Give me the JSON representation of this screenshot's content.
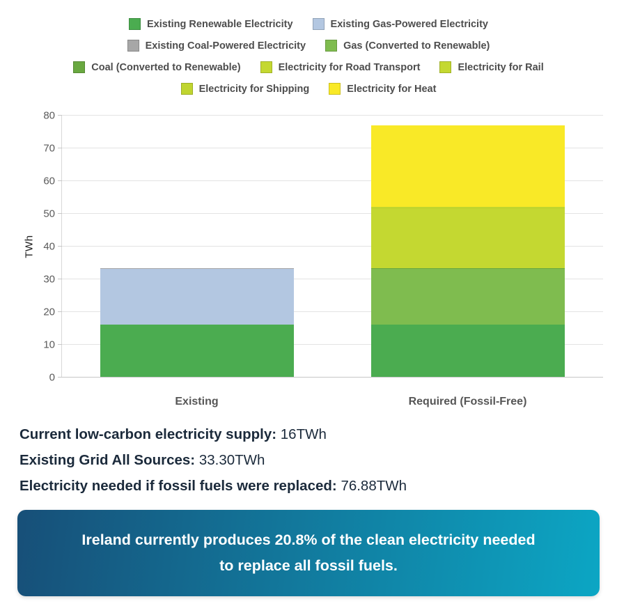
{
  "legend": {
    "rows": [
      [
        {
          "label": "Existing Renewable Electricity",
          "color": "#4BAC50"
        },
        {
          "label": "Existing Gas-Powered Electricity",
          "color": "#B3C7E1"
        }
      ],
      [
        {
          "label": "Existing Coal-Powered Electricity",
          "color": "#A7A7A7"
        },
        {
          "label": "Gas (Converted to Renewable)",
          "color": "#7FBC4F"
        }
      ],
      [
        {
          "label": "Coal (Converted to Renewable)",
          "color": "#69A840"
        },
        {
          "label": "Electricity for Road Transport",
          "color": "#C4D831"
        },
        {
          "label": "Electricity for Rail",
          "color": "#C4D831"
        }
      ],
      [
        {
          "label": "Electricity for Shipping",
          "color": "#C0D52F"
        },
        {
          "label": "Electricity for Heat",
          "color": "#F9E927"
        }
      ]
    ]
  },
  "chart_data": {
    "type": "bar",
    "stacked": true,
    "categories": [
      "Existing",
      "Required (Fossil-Free)"
    ],
    "ylabel": "TWh",
    "ylim": [
      0,
      80
    ],
    "yticks": [
      0,
      10,
      20,
      30,
      40,
      50,
      60,
      70,
      80
    ],
    "grid": true,
    "legend_position": "top",
    "series": [
      {
        "name": "Existing Renewable Electricity",
        "color": "#4BAC50",
        "values": [
          16,
          16
        ]
      },
      {
        "name": "Existing Gas-Powered Electricity",
        "color": "#B3C7E1",
        "values": [
          17.0,
          0
        ]
      },
      {
        "name": "Existing Coal-Powered Electricity",
        "color": "#A7A7A7",
        "values": [
          0.3,
          0
        ]
      },
      {
        "name": "Gas (Converted to Renewable)",
        "color": "#7FBC4F",
        "values": [
          0,
          17.0
        ]
      },
      {
        "name": "Coal (Converted to Renewable)",
        "color": "#69A840",
        "values": [
          0,
          0.3
        ]
      },
      {
        "name": "Electricity for Road Transport",
        "color": "#C4D831",
        "values": [
          0,
          17.55
        ]
      },
      {
        "name": "Electricity for Rail",
        "color": "#C4D831",
        "values": [
          0,
          0.35
        ]
      },
      {
        "name": "Electricity for Shipping",
        "color": "#C0D52F",
        "values": [
          0,
          0.65
        ]
      },
      {
        "name": "Electricity for Heat",
        "color": "#F9E927",
        "values": [
          0,
          25.03
        ]
      }
    ],
    "bar_totals": {
      "Existing": 33.3,
      "Required (Fossil-Free)": 76.88
    }
  },
  "stats": [
    {
      "label": "Current low-carbon electricity supply:",
      "value": "16TWh"
    },
    {
      "label": "Existing Grid All Sources:",
      "value": "33.30TWh"
    },
    {
      "label": "Electricity needed if fossil fuels were replaced:",
      "value": "76.88TWh"
    }
  ],
  "banner": {
    "line1": "Ireland currently produces 20.8% of the clean electricity needed",
    "line2": "to replace all fossil fuels.",
    "gradient_from": "#174F78",
    "gradient_to": "#0CA6C4"
  }
}
